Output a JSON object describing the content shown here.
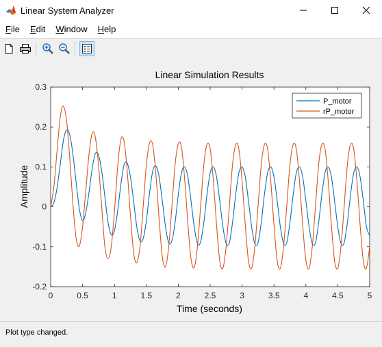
{
  "window": {
    "title": "Linear System Analyzer",
    "icon": "matlab-icon",
    "controls": [
      "minimize-icon",
      "maximize-icon",
      "close-icon"
    ]
  },
  "menu": {
    "items": [
      {
        "label": "File",
        "accel": "F",
        "rest": "ile"
      },
      {
        "label": "Edit",
        "accel": "E",
        "rest": "dit"
      },
      {
        "label": "Window",
        "accel": "W",
        "rest": "indow"
      },
      {
        "label": "Help",
        "accel": "H",
        "rest": "elp"
      }
    ]
  },
  "toolbar": {
    "buttons": [
      "new-file-icon",
      "print-icon",
      "zoom-in-icon",
      "zoom-out-icon",
      "legend-icon"
    ]
  },
  "status": {
    "text": "Plot type changed."
  },
  "colors": {
    "series1": "#0072bd",
    "series2": "#d95319"
  },
  "chart_data": {
    "type": "line",
    "title": "Linear Simulation Results",
    "xlabel": "Time (seconds)",
    "ylabel": "Amplitude",
    "xlim": [
      0,
      5
    ],
    "ylim": [
      -0.2,
      0.3
    ],
    "xticks": [
      0,
      0.5,
      1,
      1.5,
      2,
      2.5,
      3,
      3.5,
      4,
      4.5,
      5
    ],
    "xtick_labels": [
      "0",
      "0.5",
      "1",
      "1.5",
      "2",
      "2.5",
      "3",
      "3.5",
      "4",
      "4.5",
      "5"
    ],
    "yticks": [
      -0.2,
      -0.1,
      0,
      0.1,
      0.2,
      0.3
    ],
    "ytick_labels": [
      "-0.2",
      "-0.1",
      "0",
      "0.1",
      "0.2",
      "0.3"
    ],
    "grid": false,
    "legend": "top-right",
    "series": [
      {
        "name": "P_motor",
        "color": "#0072bd",
        "x": [
          0,
          0.05,
          0.1,
          0.15,
          0.2,
          0.25,
          0.3,
          0.35,
          0.4,
          0.45,
          0.5,
          0.55,
          0.6,
          0.65,
          0.7,
          0.75,
          0.8,
          0.85,
          0.9,
          0.95,
          1.0,
          1.05,
          1.1,
          1.15,
          1.2,
          1.25,
          1.3,
          1.35,
          1.4,
          1.45,
          1.5,
          1.55,
          1.6,
          1.65,
          1.7,
          1.75,
          1.8,
          1.85,
          1.9,
          1.95,
          2.0,
          2.05,
          2.1,
          2.15,
          2.2,
          2.25,
          2.3,
          2.35,
          2.4,
          2.45,
          2.5,
          2.55,
          2.6,
          2.65,
          2.7,
          2.75,
          2.8,
          2.85,
          2.9,
          2.95,
          3.0,
          3.05,
          3.1,
          3.15,
          3.2,
          3.25,
          3.3,
          3.35,
          3.4,
          3.45,
          3.5,
          3.55,
          3.6,
          3.65,
          3.7,
          3.75,
          3.8,
          3.85,
          3.9,
          3.95,
          4.0,
          4.05,
          4.1,
          4.15,
          4.2,
          4.25,
          4.3,
          4.35,
          4.4,
          4.45,
          4.5,
          4.55,
          4.6,
          4.65,
          4.7,
          4.75,
          4.8,
          4.85,
          4.9,
          4.95,
          5.0
        ],
        "y": [
          0,
          0.01,
          0.047,
          0.106,
          0.166,
          0.193,
          0.18,
          0.13,
          0.06,
          -0.005,
          -0.035,
          -0.015,
          0.035,
          0.095,
          0.133,
          0.13,
          0.09,
          0.025,
          -0.04,
          -0.07,
          -0.06,
          -0.01,
          0.055,
          0.105,
          0.11,
          0.075,
          0.015,
          -0.05,
          -0.085,
          -0.08,
          -0.035,
          0.035,
          0.09,
          0.102,
          0.075,
          0.015,
          -0.05,
          -0.09,
          -0.085,
          -0.04,
          0.03,
          0.085,
          0.1,
          0.075,
          0.015,
          -0.05,
          -0.092,
          -0.088,
          -0.04,
          0.03,
          0.085,
          0.1,
          0.075,
          0.015,
          -0.05,
          -0.092,
          -0.09,
          -0.04,
          0.03,
          0.085,
          0.1,
          0.075,
          0.015,
          -0.05,
          -0.092,
          -0.09,
          -0.04,
          0.03,
          0.085,
          0.1,
          0.075,
          0.015,
          -0.05,
          -0.092,
          -0.09,
          -0.04,
          0.03,
          0.085,
          0.1,
          0.075,
          0.015,
          -0.05,
          -0.092,
          -0.09,
          -0.04,
          0.03,
          0.085,
          0.1,
          0.075,
          0.015,
          -0.05,
          -0.092,
          -0.09,
          -0.04,
          0.03,
          0.085,
          0.1,
          0.075,
          0.015,
          -0.05,
          -0.072
        ]
      },
      {
        "name": "rP_motor",
        "color": "#d95319",
        "x": [
          0,
          0.05,
          0.1,
          0.15,
          0.2,
          0.25,
          0.3,
          0.35,
          0.4,
          0.45,
          0.5,
          0.55,
          0.6,
          0.65,
          0.7,
          0.75,
          0.8,
          0.85,
          0.9,
          0.95,
          1.0,
          1.05,
          1.1,
          1.15,
          1.2,
          1.25,
          1.3,
          1.35,
          1.4,
          1.45,
          1.5,
          1.55,
          1.6,
          1.65,
          1.7,
          1.75,
          1.8,
          1.85,
          1.9,
          1.95,
          2.0,
          2.05,
          2.1,
          2.15,
          2.2,
          2.25,
          2.3,
          2.35,
          2.4,
          2.45,
          2.5,
          2.55,
          2.6,
          2.65,
          2.7,
          2.75,
          2.8,
          2.85,
          2.9,
          2.95,
          3.0,
          3.05,
          3.1,
          3.15,
          3.2,
          3.25,
          3.3,
          3.35,
          3.4,
          3.45,
          3.5,
          3.55,
          3.6,
          3.65,
          3.7,
          3.75,
          3.8,
          3.85,
          3.9,
          3.95,
          4.0,
          4.05,
          4.1,
          4.15,
          4.2,
          4.25,
          4.3,
          4.35,
          4.4,
          4.45,
          4.5,
          4.55,
          4.6,
          4.65,
          4.7,
          4.75,
          4.8,
          4.85,
          4.9,
          4.95,
          5.0
        ],
        "y": [
          0,
          0.05,
          0.14,
          0.225,
          0.252,
          0.215,
          0.12,
          0.005,
          -0.08,
          -0.098,
          -0.05,
          0.04,
          0.13,
          0.185,
          0.175,
          0.105,
          0.0,
          -0.1,
          -0.13,
          -0.1,
          -0.01,
          0.1,
          0.168,
          0.165,
          0.09,
          -0.02,
          -0.115,
          -0.14,
          -0.1,
          0.0,
          0.105,
          0.16,
          0.155,
          0.08,
          -0.03,
          -0.125,
          -0.15,
          -0.1,
          0.0,
          0.105,
          0.158,
          0.15,
          0.07,
          -0.04,
          -0.13,
          -0.152,
          -0.1,
          0.0,
          0.105,
          0.156,
          0.145,
          0.065,
          -0.045,
          -0.135,
          -0.154,
          -0.1,
          0.0,
          0.105,
          0.156,
          0.145,
          0.065,
          -0.045,
          -0.135,
          -0.154,
          -0.1,
          0.0,
          0.105,
          0.156,
          0.145,
          0.065,
          -0.045,
          -0.135,
          -0.154,
          -0.1,
          0.0,
          0.105,
          0.156,
          0.145,
          0.065,
          -0.045,
          -0.135,
          -0.154,
          -0.1,
          0.0,
          0.105,
          0.156,
          0.145,
          0.065,
          -0.045,
          -0.135,
          -0.154,
          -0.1,
          0.0,
          0.105,
          0.156,
          0.145,
          0.065,
          -0.045,
          -0.135,
          -0.154,
          -0.1
        ]
      }
    ]
  }
}
